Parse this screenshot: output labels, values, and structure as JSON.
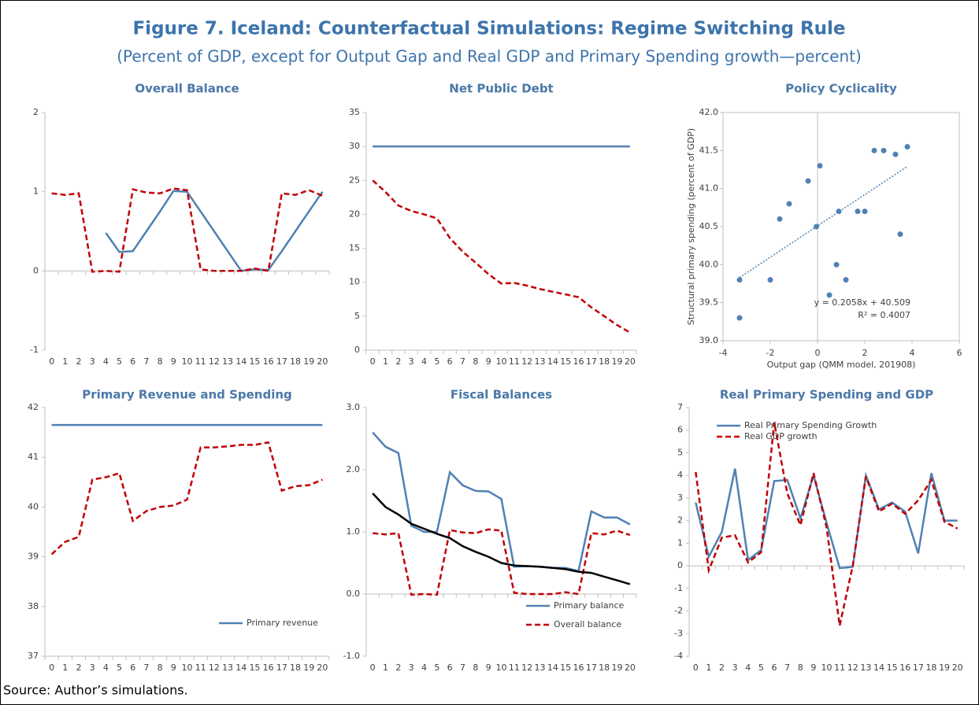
{
  "title": "Figure 7. Iceland: Counterfactual Simulations: Regime Switching Rule",
  "subtitle": "(Percent of GDP, except for Output Gap and Real GDP and Primary Spending growth—percent)",
  "source": "Source: Author’s simulations.",
  "chart_data": [
    {
      "type": "line",
      "title": "Overall Balance",
      "categories": [
        0,
        1,
        2,
        3,
        4,
        5,
        6,
        7,
        8,
        9,
        10,
        11,
        12,
        13,
        14,
        15,
        16,
        17,
        18,
        19,
        20
      ],
      "ylim": [
        -1,
        2
      ],
      "yticks": [
        -1,
        0,
        1,
        2
      ],
      "series": [
        {
          "color": "#5081b4",
          "values": [
            null,
            null,
            null,
            null,
            0.48,
            0.24,
            0.25,
            0.5,
            0.75,
            1.01,
            1.0,
            0.75,
            0.5,
            0.25,
            0.0,
            0.02,
            0.01,
            0.25,
            0.5,
            0.75,
            1.0
          ]
        },
        {
          "color": "#c00000",
          "dash": true,
          "values": [
            0.98,
            0.96,
            0.98,
            -0.01,
            0.0,
            -0.01,
            1.03,
            0.99,
            0.98,
            1.04,
            1.02,
            0.02,
            0.0,
            0.0,
            0.0,
            0.03,
            0.0,
            0.98,
            0.96,
            1.02,
            0.95
          ]
        }
      ]
    },
    {
      "type": "line",
      "title": "Net Public Debt",
      "categories": [
        0,
        1,
        2,
        3,
        4,
        5,
        6,
        7,
        8,
        9,
        10,
        11,
        12,
        13,
        14,
        15,
        16,
        17,
        18,
        19,
        20
      ],
      "ylim": [
        0,
        35
      ],
      "yticks": [
        0,
        5,
        10,
        15,
        20,
        25,
        30,
        35
      ],
      "series": [
        {
          "color": "#5081b4",
          "values": [
            30,
            30,
            30,
            30,
            30,
            30,
            30,
            30,
            30,
            30,
            30,
            30,
            30,
            30,
            30,
            30,
            30,
            30,
            30,
            30,
            30
          ]
        },
        {
          "color": "#c00000",
          "dash": true,
          "values": [
            25,
            23.3,
            21.3,
            20.5,
            20,
            19.4,
            16.5,
            14.5,
            12.9,
            11.2,
            9.8,
            9.9,
            9.5,
            9,
            8.6,
            8.2,
            7.8,
            6.3,
            5,
            3.7,
            2.6
          ]
        }
      ]
    },
    {
      "type": "scatter",
      "title": "Policy Cyclicality",
      "x_label": "Output gap (QMM model, 201908)",
      "y_label": "Structural primary spending (percent of GDP)",
      "x": [
        -3.3,
        -3.3,
        -1.6,
        -1.2,
        -0.4,
        -2.0,
        -0.05,
        0.1,
        0.5,
        0.8,
        0.9,
        1.2,
        1.7,
        2.0,
        2.4,
        2.8,
        3.3,
        3.5,
        3.8
      ],
      "values": [
        39.8,
        39.3,
        40.6,
        40.8,
        41.1,
        39.8,
        40.5,
        41.3,
        39.6,
        40.0,
        40.7,
        39.8,
        40.7,
        40.7,
        41.5,
        41.5,
        41.45,
        40.4,
        41.55
      ],
      "color": "#5081b4",
      "xlim": [
        -4,
        6
      ],
      "xticks": [
        -4,
        -2,
        0,
        2,
        4,
        6
      ],
      "ylim": [
        39,
        42
      ],
      "yticks": [
        {
          "value": 39,
          "label": "39.0"
        },
        39.5,
        {
          "value": 40,
          "label": "40.0"
        },
        40.5,
        {
          "value": 41,
          "label": "41.0"
        },
        41.5,
        {
          "value": 42,
          "label": "42.0"
        }
      ],
      "trendline": {
        "slope": 0.2058,
        "intercept": 40.509,
        "label": "y = 0.2058x + 40.509",
        "r2_label": "R² = 0.4007"
      }
    },
    {
      "type": "line",
      "title": "Primary Revenue and Spending",
      "categories": [
        0,
        1,
        2,
        3,
        4,
        5,
        6,
        7,
        8,
        9,
        10,
        11,
        12,
        13,
        14,
        15,
        16,
        17,
        18,
        19,
        20
      ],
      "ylim": [
        37,
        42
      ],
      "yticks": [
        37,
        38,
        39,
        40,
        41,
        42
      ],
      "legend": "lower right",
      "series": [
        {
          "name": "Primary revenue",
          "color": "#5081b4",
          "values": [
            41.65,
            41.65,
            41.65,
            41.65,
            41.65,
            41.65,
            41.65,
            41.65,
            41.65,
            41.65,
            41.65,
            41.65,
            41.65,
            41.65,
            41.65,
            41.65,
            41.65,
            41.65,
            41.65,
            41.65,
            41.65
          ]
        },
        {
          "color": "#c00000",
          "dash": true,
          "values": [
            39.05,
            39.3,
            39.4,
            40.55,
            40.6,
            40.68,
            39.72,
            39.92,
            40.0,
            40.03,
            40.15,
            41.2,
            41.2,
            41.22,
            41.25,
            41.25,
            41.3,
            40.33,
            40.42,
            40.44,
            40.55
          ]
        }
      ]
    },
    {
      "type": "line",
      "title": "Fiscal Balances",
      "categories": [
        0,
        1,
        2,
        3,
        4,
        5,
        6,
        7,
        8,
        9,
        10,
        11,
        12,
        13,
        14,
        15,
        16,
        17,
        18,
        19,
        20
      ],
      "ylim": [
        -1,
        3
      ],
      "yticks": [
        {
          "value": -1,
          "label": "-1.0"
        },
        {
          "value": 0,
          "label": "0.0"
        },
        {
          "value": 1,
          "label": "1.0"
        },
        {
          "value": 2,
          "label": "2.0"
        },
        {
          "value": 3,
          "label": "3.0"
        }
      ],
      "legend": "lower right",
      "series": [
        {
          "name": "Primary balance",
          "color": "#5081b4",
          "values": [
            2.6,
            2.37,
            2.27,
            1.1,
            1.0,
            1.0,
            1.96,
            1.75,
            1.66,
            1.65,
            1.53,
            0.44,
            0.45,
            0.44,
            0.42,
            0.42,
            0.37,
            1.33,
            1.23,
            1.23,
            1.12
          ]
        },
        {
          "name": "Overall balance",
          "color": "#c00000",
          "dash": true,
          "values": [
            0.98,
            0.96,
            0.98,
            -0.01,
            0.0,
            -0.01,
            1.03,
            0.99,
            0.98,
            1.04,
            1.02,
            0.02,
            0.0,
            0.0,
            0.0,
            0.03,
            0.0,
            0.98,
            0.96,
            1.02,
            0.95
          ]
        },
        {
          "color": "#000000",
          "values": [
            1.62,
            1.4,
            1.28,
            1.13,
            1.05,
            0.97,
            0.9,
            0.77,
            0.68,
            0.6,
            0.5,
            0.46,
            0.45,
            0.44,
            0.42,
            0.4,
            0.36,
            0.34,
            0.28,
            0.22,
            0.16
          ]
        }
      ]
    },
    {
      "type": "line",
      "title": "Real Primary Spending and GDP",
      "categories": [
        0,
        1,
        2,
        3,
        4,
        5,
        6,
        7,
        8,
        9,
        10,
        11,
        12,
        13,
        14,
        15,
        16,
        17,
        18,
        19,
        20
      ],
      "ylim": [
        -4,
        7
      ],
      "yticks": [
        -4,
        -3,
        -2,
        -1,
        0,
        1,
        2,
        3,
        4,
        5,
        6,
        7
      ],
      "legend": "upper left",
      "series": [
        {
          "name": "Real Primary Spending Growth",
          "color": "#5081b4",
          "values": [
            2.8,
            0.4,
            1.5,
            4.3,
            0.25,
            0.7,
            3.75,
            3.8,
            2.1,
            4.0,
            1.9,
            -0.1,
            -0.05,
            4.0,
            2.5,
            2.8,
            2.4,
            0.55,
            4.1,
            2.0,
            2.0
          ]
        },
        {
          "name": "Real GDP growth",
          "color": "#c00000",
          "dash": true,
          "values": [
            4.15,
            -0.2,
            1.25,
            1.35,
            0.15,
            0.6,
            6.35,
            3.2,
            1.8,
            4.1,
            1.7,
            -2.65,
            0.0,
            3.95,
            2.4,
            2.75,
            2.3,
            2.9,
            3.8,
            1.95,
            1.65
          ]
        }
      ]
    }
  ]
}
